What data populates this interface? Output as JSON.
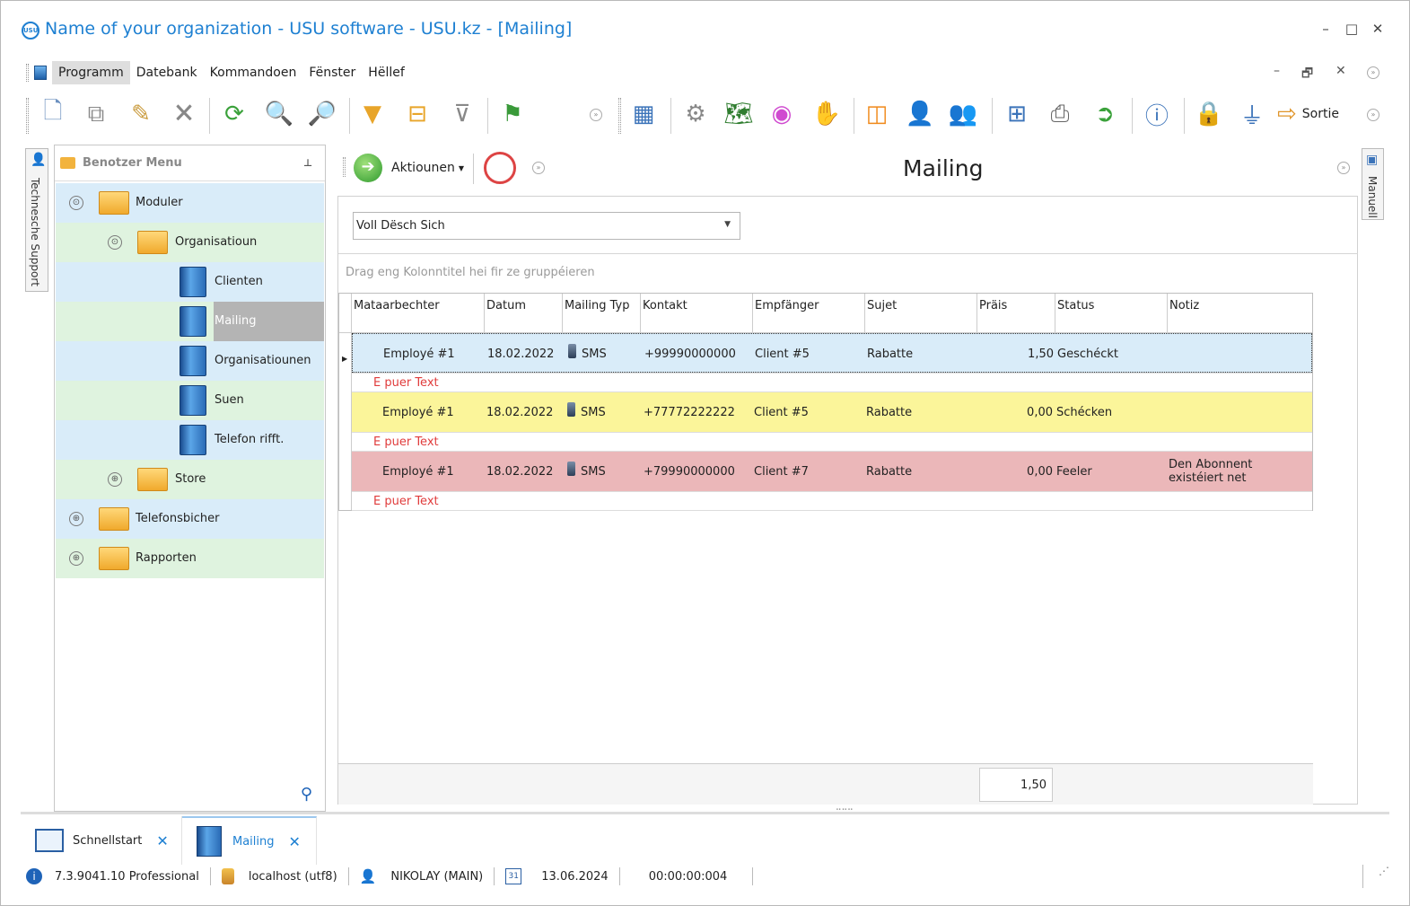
{
  "window": {
    "title": "Name of your organization - USU software - USU.kz - [Mailing]",
    "logo_text": "USU",
    "minimize": "–",
    "maximize": "□",
    "close": "✕"
  },
  "menubar": {
    "items": [
      "Programm",
      "Datebank",
      "Kommandoen",
      "Fënster",
      "Hëllef"
    ],
    "mdi_minimize": "–",
    "mdi_restore": "🗗",
    "mdi_close": "✕"
  },
  "toolbar": {
    "exit_label": "Sortie",
    "icons": [
      "new-icon",
      "copy-icon",
      "edit-icon",
      "delete-icon",
      "refresh-icon",
      "search-icon",
      "search-advanced-icon",
      "filter-icon",
      "filter-settings-icon",
      "filter-clear-icon",
      "flag-icon",
      "grid-layout-icon",
      "settings-icon",
      "map-icon",
      "color-wheel-icon",
      "hand-icon",
      "rss-icon",
      "user-key-icon",
      "users-icon",
      "table-icon",
      "print-icon",
      "go-icon",
      "info-icon",
      "lock-icon",
      "plugin-icon",
      "exit-icon"
    ]
  },
  "left_strip": {
    "label": "Technesche Support"
  },
  "right_strip": {
    "label": "Manuell"
  },
  "sidebar": {
    "title": "Benotzer Menu",
    "pin": "⊥",
    "nodes": [
      {
        "label": "Moduler",
        "expander": "⊙"
      },
      {
        "label": "Organisatioun",
        "expander": "⊙"
      },
      {
        "label": "Clienten"
      },
      {
        "label": "Mailing"
      },
      {
        "label": "Organisatiounen"
      },
      {
        "label": "Suen"
      },
      {
        "label": "Telefon rifft."
      },
      {
        "label": "Store",
        "expander": "⊕"
      },
      {
        "label": "Telefonsbicher",
        "expander": "⊕"
      },
      {
        "label": "Rapporten",
        "expander": "⊕"
      }
    ]
  },
  "content": {
    "actions_label": "Aktiounen",
    "title": "Mailing",
    "filter_value": "Voll Dësch Sich",
    "group_hint": "Drag eng Kolonntitel hei fir ze gruppéieren",
    "columns": [
      "Mataarbechter",
      "Datum",
      "Mailing Typ",
      "Kontakt",
      "Empfänger",
      "Sujet",
      "Präis",
      "Status",
      "Notiz"
    ],
    "rows": [
      {
        "employee": "Employé #1",
        "date": "18.02.2022",
        "type": "SMS",
        "contact": "+99990000000",
        "recipient": "Client #5",
        "subject": "Rabatte",
        "price": "1,50",
        "status": "Geschéckt",
        "note": "",
        "preview": "E puer Text",
        "color": "#d9ecf9"
      },
      {
        "employee": "Employé #1",
        "date": "18.02.2022",
        "type": "SMS",
        "contact": "+77772222222",
        "recipient": "Client #5",
        "subject": "Rabatte",
        "price": "0,00",
        "status": "Schécken",
        "note": "",
        "preview": "E puer Text",
        "color": "#fbf59a"
      },
      {
        "employee": "Employé #1",
        "date": "18.02.2022",
        "type": "SMS",
        "contact": "+79990000000",
        "recipient": "Client #7",
        "subject": "Rabatte",
        "price": "0,00",
        "status": "Feeler",
        "note": "Den Abonnent existéiert net",
        "preview": "E puer Text",
        "color": "#ebb7b9"
      }
    ],
    "price_total": "1,50"
  },
  "tabs": [
    {
      "label": "Schnellstart",
      "close": "✕"
    },
    {
      "label": "Mailing",
      "close": "✕"
    }
  ],
  "statusbar": {
    "version": "7.3.9041.10 Professional",
    "database": "localhost (utf8)",
    "user": "NIKOLAY (MAIN)",
    "calendar_day": "31",
    "date": "13.06.2024",
    "timer": "00:00:00:004"
  }
}
